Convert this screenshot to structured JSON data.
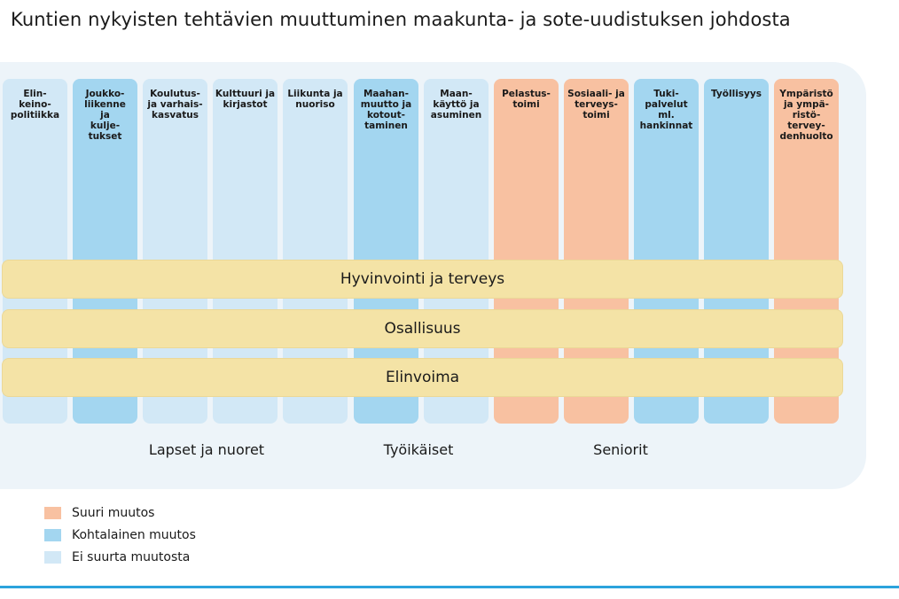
{
  "title": "Kuntien nykyisten tehtävien muuttuminen maakunta- ja sote-uudistuksen johdosta",
  "colors": {
    "suuri": "#f8c1a1",
    "kohtalainen": "#a3d6f0",
    "ei": "#d2e8f6",
    "band": "#f4e3a6",
    "rule": "#2ca3dc"
  },
  "chart_data": {
    "type": "table",
    "columns": [
      {
        "label": "Elin-\nkeino-\npolitiikka",
        "change": "ei"
      },
      {
        "label": "Joukko-\nliikenne\nja\nkulje-\ntukset",
        "change": "kohtalainen"
      },
      {
        "label": "Koulutus-\nja varhais-\nkasvatus",
        "change": "ei"
      },
      {
        "label": "Kulttuuri ja\nkirjastot",
        "change": "ei"
      },
      {
        "label": "Liikunta ja\nnuoriso",
        "change": "ei"
      },
      {
        "label": "Maahan-\nmuutto ja\nkotout-\ntaminen",
        "change": "kohtalainen"
      },
      {
        "label": "Maan-\nkäyttö ja\nasuminen",
        "change": "ei"
      },
      {
        "label": "Pelastus-\ntoimi",
        "change": "suuri"
      },
      {
        "label": "Sosiaali- ja\nterveys-\ntoimi",
        "change": "suuri"
      },
      {
        "label": "Tuki-\npalvelut\nml.\nhankinnat",
        "change": "kohtalainen"
      },
      {
        "label": "Työllisyys",
        "change": "kohtalainen"
      },
      {
        "label": "Ympäristö\nja ympä-\nristö-\ntervey-\ndenhuolto",
        "change": "suuri"
      }
    ],
    "bands": [
      "Hyvinvointi ja terveys",
      "Osallisuus",
      "Elinvoima"
    ],
    "groups": [
      "Lapset ja nuoret",
      "Työikäiset",
      "Seniorit"
    ],
    "legend": [
      {
        "key": "suuri",
        "label": "Suuri muutos"
      },
      {
        "key": "kohtalainen",
        "label": "Kohtalainen muutos"
      },
      {
        "key": "ei",
        "label": "Ei suurta muutosta"
      }
    ]
  }
}
